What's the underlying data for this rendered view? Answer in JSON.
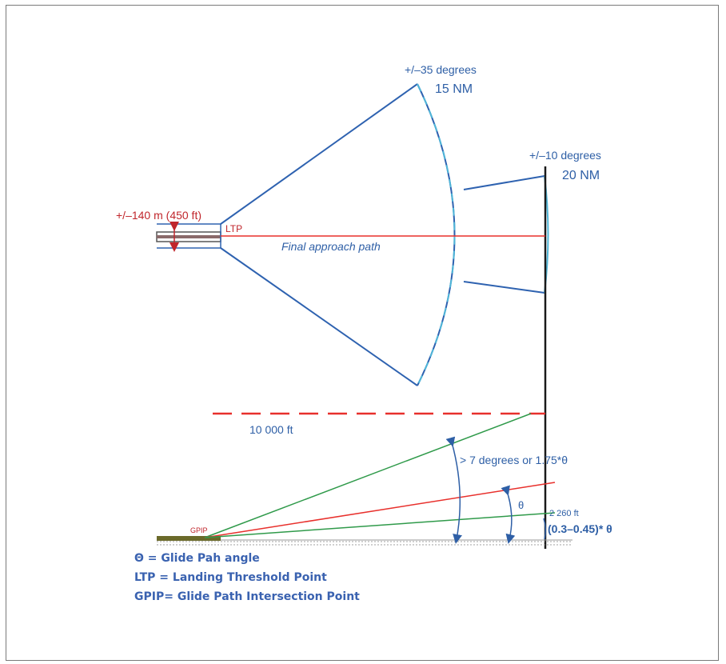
{
  "labels": {
    "cone_35": "+/–35 degrees",
    "range_15": "15 NM",
    "cone_10": "+/–10 degrees",
    "range_20": "20 NM",
    "width_140": "+/–140 m (450 ft)",
    "ltp": "LTP",
    "final_approach": "Final approach path",
    "alt_10000": "10 000 ft",
    "gt7": "> 7 degrees or 1.75*θ",
    "theta": "θ",
    "h2260": "2 260 ft",
    "low_factor": "(0.3–0.45)* θ",
    "gpip": "GPIP"
  },
  "legend": [
    "Θ = Glide Pah angle",
    "LTP = Landing Threshold Point",
    "GPIP= Glide Path Intersection Point"
  ],
  "colors": {
    "coverage_line": "#2e62b0",
    "coverage_arc": "#4fb6d8",
    "approach_path": "#e8302c",
    "upper_limit": "#2f9a4a",
    "ground": "#6b6a2a",
    "vertical_line": "#1a1a1a"
  }
}
